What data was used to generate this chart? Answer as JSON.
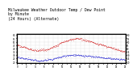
{
  "title": "Milwaukee Weather Outdoor Temp / Dew Point\nby Minute\n(24 Hours) (Alternate)",
  "title_fontsize": 3.5,
  "background_color": "#ffffff",
  "plot_bg_color": "#ffffff",
  "grid_color": "#aaaaaa",
  "temp_color": "#cc0000",
  "dew_color": "#0000cc",
  "ylim": [
    18,
    62
  ],
  "xlim": [
    0,
    1440
  ],
  "temp_data": [
    45,
    44,
    43,
    42,
    41,
    40,
    39,
    38,
    37,
    37,
    37,
    38,
    38,
    39,
    40,
    41,
    43,
    44,
    46,
    48,
    50,
    51,
    52,
    53,
    54,
    55,
    55,
    55,
    54,
    53,
    52,
    51,
    50,
    49,
    48,
    47,
    46,
    45,
    44,
    43,
    42,
    41,
    40,
    39,
    38,
    37,
    36,
    35
  ],
  "dew_data": [
    27,
    26,
    26,
    25,
    25,
    24,
    24,
    23,
    23,
    22,
    22,
    22,
    23,
    23,
    24,
    24,
    25,
    26,
    27,
    28,
    29,
    29,
    30,
    30,
    30,
    30,
    30,
    30,
    30,
    29,
    29,
    29,
    28,
    28,
    28,
    27,
    27,
    27,
    26,
    26,
    26,
    25,
    25,
    25,
    24,
    24,
    24,
    23
  ]
}
